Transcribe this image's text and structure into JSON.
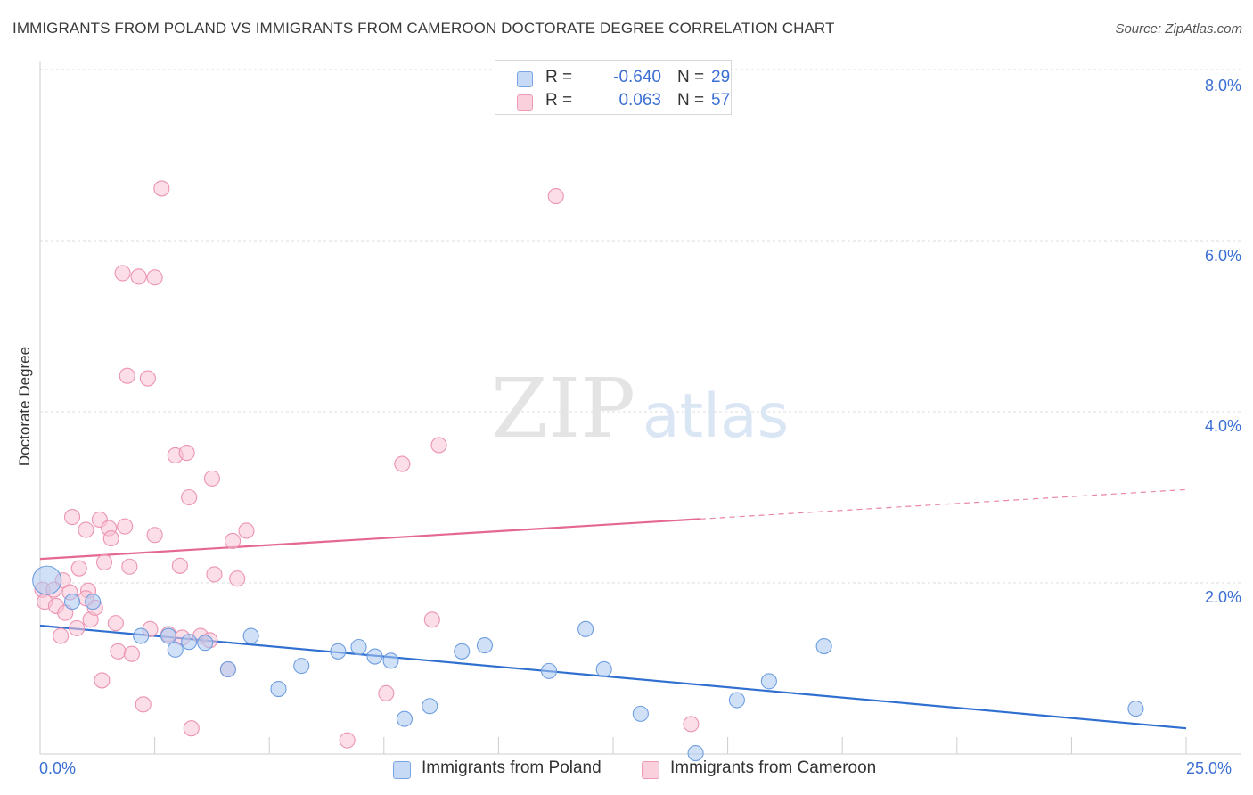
{
  "title": "IMMIGRANTS FROM POLAND VS IMMIGRANTS FROM CAMEROON DOCTORATE DEGREE CORRELATION CHART",
  "source": "Source: ZipAtlas.com",
  "colors": {
    "poland_fill": "#aac8f0",
    "poland_stroke": "#6f9ee0",
    "poland_line": "#2f6fd0",
    "cameroon_fill": "#f7c3d3",
    "cameroon_stroke": "#ec94b1",
    "cameroon_line": "#e4688f",
    "tick_text": "#3b6fd4",
    "grid": "#dddddd"
  },
  "legend": {
    "poland": {
      "r_label": "R =",
      "r_value": "-0.640",
      "n_label": "N =",
      "n_value": "29"
    },
    "cameroon": {
      "r_label": "R =",
      "r_value": "0.063",
      "n_label": "N =",
      "n_value": "57"
    }
  },
  "bottom_legend": {
    "poland": "Immigrants from Poland",
    "cameroon": "Immigrants from Cameroon"
  },
  "watermark": {
    "zip": "ZIP",
    "atlas": "atlas"
  },
  "chart_data": {
    "type": "scatter",
    "title": "IMMIGRANTS FROM POLAND VS IMMIGRANTS FROM CAMEROON DOCTORATE DEGREE CORRELATION CHART",
    "xlabel": "",
    "ylabel": "Doctorate Degree",
    "xlim": [
      0,
      25
    ],
    "ylim": [
      0,
      8
    ],
    "x_tick_labels": [
      "0.0%",
      "25.0%"
    ],
    "y_ticks": [
      2,
      4,
      6,
      8
    ],
    "y_tick_labels": [
      "2.0%",
      "4.0%",
      "6.0%",
      "8.0%"
    ],
    "grid": true,
    "legend_position": "top-center",
    "series": [
      {
        "name": "Immigrants from Poland",
        "R": -0.64,
        "N": 29,
        "points": [
          [
            0.15,
            2.03
          ],
          [
            0.7,
            1.78
          ],
          [
            1.15,
            1.78
          ],
          [
            2.2,
            1.38
          ],
          [
            2.8,
            1.38
          ],
          [
            2.95,
            1.22
          ],
          [
            3.25,
            1.31
          ],
          [
            3.6,
            1.3
          ],
          [
            4.1,
            0.99
          ],
          [
            4.6,
            1.38
          ],
          [
            5.2,
            0.76
          ],
          [
            5.7,
            1.03
          ],
          [
            6.5,
            1.2
          ],
          [
            6.95,
            1.25
          ],
          [
            7.3,
            1.14
          ],
          [
            7.65,
            1.09
          ],
          [
            7.95,
            0.41
          ],
          [
            8.5,
            0.56
          ],
          [
            9.2,
            1.2
          ],
          [
            9.7,
            1.27
          ],
          [
            11.1,
            0.97
          ],
          [
            11.9,
            1.46
          ],
          [
            12.3,
            0.99
          ],
          [
            13.1,
            0.47
          ],
          [
            14.3,
            0.01
          ],
          [
            15.2,
            0.63
          ],
          [
            15.9,
            0.85
          ],
          [
            17.1,
            1.26
          ],
          [
            23.9,
            0.53
          ]
        ],
        "trend": {
          "x": [
            0,
            25
          ],
          "y": [
            1.5,
            0.3
          ]
        }
      },
      {
        "name": "Immigrants from Cameroon",
        "R": 0.063,
        "N": 57,
        "points": [
          [
            0.05,
            1.92
          ],
          [
            0.1,
            1.78
          ],
          [
            0.35,
            1.73
          ],
          [
            0.45,
            1.38
          ],
          [
            0.5,
            2.03
          ],
          [
            0.55,
            1.65
          ],
          [
            0.65,
            1.89
          ],
          [
            0.7,
            2.77
          ],
          [
            0.8,
            1.47
          ],
          [
            0.85,
            2.17
          ],
          [
            1.0,
            2.62
          ],
          [
            1.05,
            1.91
          ],
          [
            1.1,
            1.57
          ],
          [
            1.2,
            1.71
          ],
          [
            1.3,
            2.74
          ],
          [
            1.35,
            0.86
          ],
          [
            1.4,
            2.24
          ],
          [
            1.5,
            2.64
          ],
          [
            1.55,
            2.52
          ],
          [
            1.65,
            1.53
          ],
          [
            1.7,
            1.2
          ],
          [
            1.8,
            5.62
          ],
          [
            1.85,
            2.66
          ],
          [
            1.9,
            4.42
          ],
          [
            1.95,
            2.19
          ],
          [
            2.0,
            1.17
          ],
          [
            2.15,
            5.58
          ],
          [
            2.25,
            0.58
          ],
          [
            2.35,
            4.39
          ],
          [
            2.4,
            1.46
          ],
          [
            2.5,
            5.57
          ],
          [
            2.5,
            2.56
          ],
          [
            2.65,
            6.61
          ],
          [
            2.95,
            3.49
          ],
          [
            3.05,
            2.2
          ],
          [
            3.1,
            1.36
          ],
          [
            3.2,
            3.52
          ],
          [
            3.25,
            3.0
          ],
          [
            3.3,
            0.3
          ],
          [
            3.5,
            1.38
          ],
          [
            3.7,
            1.33
          ],
          [
            3.75,
            3.22
          ],
          [
            3.8,
            2.1
          ],
          [
            4.1,
            0.99
          ],
          [
            4.2,
            2.49
          ],
          [
            4.3,
            2.05
          ],
          [
            4.5,
            2.61
          ],
          [
            6.7,
            0.16
          ],
          [
            7.55,
            0.71
          ],
          [
            7.9,
            3.39
          ],
          [
            8.55,
            1.57
          ],
          [
            8.7,
            3.61
          ],
          [
            11.25,
            6.52
          ],
          [
            14.2,
            0.35
          ],
          [
            0.3,
            1.92
          ],
          [
            1.0,
            1.82
          ],
          [
            2.8,
            1.4
          ]
        ],
        "trend": {
          "x": [
            0,
            25
          ],
          "y": [
            2.28,
            3.09
          ],
          "solid_until_x": 14.4
        }
      }
    ]
  }
}
